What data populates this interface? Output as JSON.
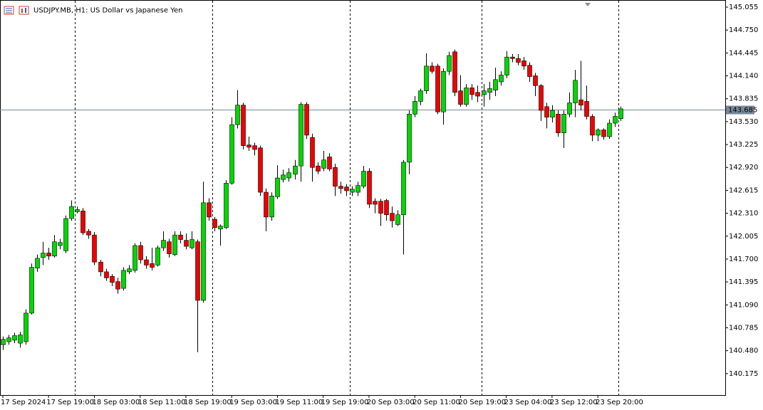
{
  "chart_data": {
    "type": "candlestick",
    "title": "USDJPY.MB, H1:  US Dollar vs Japanese Yen",
    "categories": [
      "17 Sep 2024",
      null,
      null,
      null,
      null,
      null,
      null,
      null,
      "17 Sep 19:00",
      null,
      null,
      null,
      null,
      null,
      null,
      null,
      "18 Sep 03:00",
      null,
      null,
      null,
      null,
      null,
      null,
      null,
      "18 Sep 11:00",
      null,
      null,
      null,
      null,
      null,
      null,
      null,
      "18 Sep 19:00",
      null,
      null,
      null,
      null,
      null,
      null,
      null,
      "19 Sep 03:00",
      null,
      null,
      null,
      null,
      null,
      null,
      null,
      "19 Sep 11:00",
      null,
      null,
      null,
      null,
      null,
      null,
      null,
      "19 Sep 19:00",
      null,
      null,
      null,
      null,
      null,
      null,
      null,
      "20 Sep 03:00",
      null,
      null,
      null,
      null,
      null,
      null,
      null,
      "20 Sep 11:00",
      null,
      null,
      null,
      null,
      null,
      null,
      null,
      "20 Sep 19:00",
      null,
      null,
      null,
      null,
      null,
      null,
      null,
      "23 Sep 04:00",
      null,
      null,
      null,
      null,
      null,
      null,
      null,
      "23 Sep 12:00",
      null,
      null,
      null,
      null,
      null,
      null,
      null,
      "23 Sep 20:00",
      null,
      null,
      null,
      null
    ],
    "open": [
      140.56,
      140.6,
      140.62,
      140.58,
      140.6,
      140.98,
      141.58,
      141.72,
      141.78,
      141.74,
      141.88,
      141.81,
      142.24,
      142.33,
      142.34,
      142.07,
      142.02,
      141.66,
      141.53,
      141.47,
      141.4,
      141.31,
      141.53,
      141.55,
      141.88,
      141.69,
      141.64,
      141.62,
      141.85,
      141.93,
      141.76,
      142.02,
      141.95,
      141.85,
      141.93,
      141.15,
      142.45,
      142.23,
      142.1,
      142.12,
      142.71,
      143.49,
      143.75,
      143.22,
      143.21,
      143.18,
      142.59,
      142.26,
      142.53,
      142.76,
      142.78,
      142.83,
      142.94,
      143.76,
      143.32,
      142.94,
      142.91,
      143.06,
      142.92,
      142.67,
      142.66,
      142.59,
      142.59,
      142.67,
      142.87,
      142.47,
      142.47,
      142.48,
      142.31,
      142.16,
      142.29,
      142.99,
      143.63,
      143.8,
      143.94,
      144.27,
      144.27,
      143.66,
      144.2,
      144.46,
      143.94,
      143.76,
      143.98,
      143.92,
      143.89,
      143.92,
      143.95,
      144.06,
      144.15,
      144.39,
      144.37,
      144.34,
      144.28,
      144.14,
      144.01,
      143.73,
      143.59,
      143.63,
      143.38,
      143.63,
      143.78,
      143.82,
      143.8,
      143.6,
      143.35,
      143.42,
      143.33,
      143.51,
      143.57
    ],
    "high": [
      140.67,
      140.69,
      140.72,
      140.73,
      141.03,
      141.64,
      141.76,
      141.93,
      141.85,
      142.02,
      141.97,
      142.28,
      142.48,
      142.4,
      142.38,
      142.1,
      142.06,
      141.69,
      141.57,
      141.5,
      141.45,
      141.59,
      141.62,
      141.91,
      141.93,
      141.74,
      141.85,
      141.88,
      142.07,
      141.97,
      142.07,
      142.07,
      142.04,
      142.07,
      141.96,
      142.73,
      142.51,
      142.26,
      142.16,
      142.75,
      143.59,
      143.95,
      143.78,
      143.33,
      143.25,
      143.21,
      142.64,
      142.59,
      142.95,
      142.89,
      142.91,
      143.02,
      143.79,
      143.79,
      143.37,
      142.99,
      143.14,
      143.11,
      142.97,
      142.73,
      142.7,
      142.67,
      142.73,
      142.94,
      142.91,
      142.51,
      142.5,
      142.5,
      142.4,
      142.35,
      143.02,
      143.68,
      143.87,
      143.97,
      144.44,
      144.32,
      144.3,
      144.24,
      144.46,
      144.49,
      144.15,
      144.03,
      144.03,
      144.01,
      144.03,
      144.06,
      144.25,
      144.2,
      144.47,
      144.43,
      144.43,
      144.39,
      144.32,
      144.18,
      144.03,
      143.78,
      143.75,
      143.68,
      143.68,
      143.92,
      144.22,
      144.34,
      144.01,
      143.63,
      143.44,
      143.44,
      143.56,
      143.65,
      143.73
    ],
    "low": [
      140.49,
      140.56,
      140.58,
      140.52,
      140.56,
      140.96,
      141.53,
      141.62,
      141.69,
      141.72,
      141.83,
      141.78,
      142.21,
      142.31,
      142.02,
      141.97,
      141.62,
      141.47,
      141.41,
      141.34,
      141.24,
      141.28,
      141.5,
      141.52,
      141.64,
      141.57,
      141.55,
      141.6,
      141.81,
      141.72,
      141.74,
      141.91,
      141.83,
      141.83,
      140.46,
      141.12,
      142.21,
      142.07,
      141.88,
      142.1,
      142.69,
      143.44,
      143.16,
      143.14,
      143.08,
      142.54,
      142.07,
      142.21,
      142.5,
      142.72,
      142.73,
      142.76,
      142.73,
      143.3,
      142.73,
      142.83,
      142.87,
      142.87,
      142.54,
      142.57,
      142.54,
      142.54,
      142.54,
      142.64,
      142.38,
      142.31,
      142.14,
      142.21,
      142.12,
      142.14,
      141.76,
      142.83,
      143.59,
      143.75,
      143.9,
      144.17,
      143.63,
      143.49,
      144.15,
      143.87,
      143.73,
      143.73,
      143.82,
      143.79,
      143.73,
      143.82,
      143.87,
      144.01,
      144.11,
      144.32,
      144.28,
      144.22,
      144.06,
      143.87,
      143.54,
      143.44,
      143.52,
      143.33,
      143.18,
      143.59,
      143.59,
      143.68,
      143.56,
      143.27,
      143.27,
      143.29,
      143.3,
      143.46,
      143.54
    ],
    "close": [
      140.63,
      140.65,
      140.68,
      140.69,
      140.98,
      141.59,
      141.71,
      141.78,
      141.74,
      141.93,
      141.92,
      142.24,
      142.4,
      142.36,
      142.05,
      142.02,
      141.66,
      141.53,
      141.45,
      141.39,
      141.3,
      141.55,
      141.57,
      141.88,
      141.69,
      141.62,
      141.59,
      141.85,
      141.95,
      141.77,
      142.02,
      141.96,
      141.87,
      141.96,
      141.15,
      142.45,
      142.26,
      142.12,
      142.14,
      142.71,
      143.49,
      143.75,
      143.21,
      143.19,
      143.16,
      142.59,
      142.26,
      142.54,
      142.78,
      142.82,
      142.85,
      142.94,
      143.76,
      143.35,
      142.92,
      142.87,
      143.02,
      142.9,
      142.67,
      142.64,
      142.61,
      142.63,
      142.68,
      142.87,
      142.43,
      142.43,
      142.31,
      142.29,
      142.21,
      142.29,
      142.99,
      143.63,
      143.8,
      143.94,
      144.27,
      144.2,
      143.66,
      144.2,
      144.41,
      143.92,
      143.76,
      143.98,
      143.89,
      143.87,
      143.94,
      143.97,
      144.09,
      144.15,
      144.39,
      144.37,
      144.32,
      144.27,
      144.13,
      144.01,
      143.68,
      143.59,
      143.68,
      143.38,
      143.63,
      143.78,
      144.08,
      143.75,
      143.6,
      143.35,
      143.42,
      143.33,
      143.51,
      143.6,
      143.7
    ],
    "up_color": "#00d800",
    "down_color": "#f00000",
    "last_price": 143.685,
    "last_price_color": "#778899",
    "ylim": [
      139.889,
      145.15
    ],
    "yticks": [
      145.055,
      {
        "value": 144.75,
        "label": "144.750"
      },
      144.445,
      {
        "value": 144.14,
        "label": "144.140"
      },
      143.835,
      {
        "value": 143.53,
        "label": "143.530"
      },
      143.225,
      {
        "value": 142.92,
        "label": "142.920"
      },
      142.615,
      {
        "value": 142.31,
        "label": "142.310"
      },
      142.005,
      {
        "value": 141.7,
        "label": "141.700"
      },
      141.395,
      {
        "value": 141.09,
        "label": "141.090"
      },
      140.785,
      {
        "value": 140.48,
        "label": "140.480"
      },
      140.175
    ],
    "grid": false
  }
}
